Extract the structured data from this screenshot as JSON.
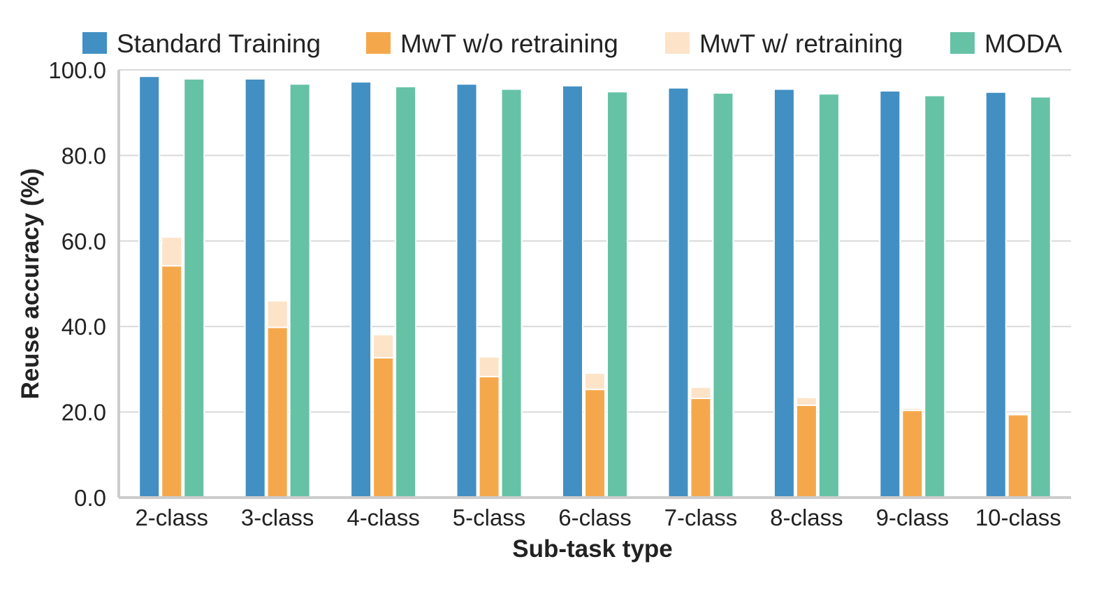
{
  "chart_data": {
    "type": "bar",
    "xlabel": "Sub-task type",
    "ylabel": "Reuse accuracy (%)",
    "ylim": [
      0,
      100
    ],
    "yticks": [
      "0.0",
      "20.0",
      "40.0",
      "60.0",
      "80.0",
      "100.0"
    ],
    "grid": "horizontal",
    "legend_position": "top",
    "categories": [
      "2-class",
      "3-class",
      "4-class",
      "5-class",
      "6-class",
      "7-class",
      "8-class",
      "9-class",
      "10-class"
    ],
    "series": [
      {
        "name": "Standard Training",
        "color": "#428fc4",
        "slot": 0,
        "values": [
          98.5,
          97.9,
          97.2,
          96.7,
          96.3,
          95.8,
          95.5,
          95.1,
          94.8
        ]
      },
      {
        "name": "MwT w/o retraining",
        "color": "#f5a84b",
        "slot": 1,
        "values": [
          54.2,
          39.8,
          32.7,
          28.3,
          25.3,
          23.2,
          21.6,
          20.4,
          19.4
        ]
      },
      {
        "name": "MwT w/ retraining",
        "color": "#fde3c8",
        "slot": 1,
        "stacked_on": "MwT w/o retraining",
        "values": [
          60.9,
          46.0,
          38.1,
          32.9,
          29.1,
          25.8,
          23.4,
          20.9,
          19.8
        ]
      },
      {
        "name": "MODA",
        "color": "#66c2a5",
        "slot": 2,
        "values": [
          97.9,
          96.7,
          96.1,
          95.5,
          94.9,
          94.6,
          94.4,
          94.0,
          93.7
        ]
      }
    ]
  }
}
